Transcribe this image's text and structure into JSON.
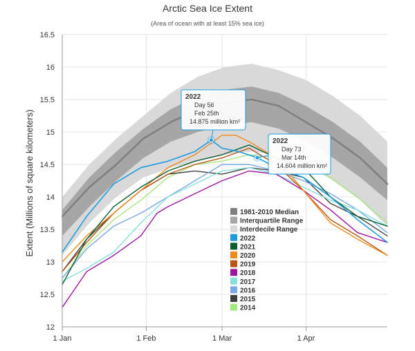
{
  "chart_data": {
    "type": "line",
    "title": "Arctic Sea Ice Extent",
    "subtitle": "(Area of ocean with at least 15% sea ice)",
    "ylabel": "Extent (Millions of square kilometers)",
    "xlabel": "",
    "xlim": [
      1,
      121
    ],
    "ylim": [
      12,
      16.5
    ],
    "grid": true,
    "legend_position": "inside-lower-right",
    "x_ticks": [
      {
        "day": 1,
        "label": "1 Jan"
      },
      {
        "day": 32,
        "label": "1 Feb"
      },
      {
        "day": 60,
        "label": "1 Mar"
      },
      {
        "day": 91,
        "label": "1 Apr"
      }
    ],
    "y_ticks": [
      12,
      12.5,
      13,
      13.5,
      14,
      14.5,
      15,
      15.5,
      16,
      16.5
    ],
    "bands": [
      {
        "name": "Interdecile Range",
        "color": "#d9d9d9",
        "x": [
          1,
          11,
          21,
          31,
          41,
          51,
          61,
          71,
          81,
          91,
          101,
          111,
          121
        ],
        "upper": [
          14.0,
          14.5,
          14.9,
          15.25,
          15.6,
          15.85,
          16.0,
          16.05,
          15.95,
          15.8,
          15.55,
          15.25,
          14.85
        ],
        "lower": [
          13.1,
          13.6,
          14.0,
          14.3,
          14.45,
          14.55,
          14.65,
          14.7,
          14.65,
          14.5,
          14.25,
          13.95,
          13.55
        ]
      },
      {
        "name": "Interquartile Range",
        "color": "#a6a6a6",
        "x": [
          1,
          11,
          21,
          31,
          41,
          51,
          61,
          71,
          81,
          91,
          101,
          111,
          121
        ],
        "upper": [
          13.8,
          14.3,
          14.7,
          15.05,
          15.35,
          15.55,
          15.65,
          15.7,
          15.6,
          15.4,
          15.15,
          14.85,
          14.45
        ],
        "lower": [
          13.4,
          13.85,
          14.25,
          14.6,
          14.85,
          15.0,
          15.1,
          15.15,
          15.05,
          14.85,
          14.6,
          14.3,
          13.95
        ]
      }
    ],
    "series": [
      {
        "name": "1981-2010 Median",
        "color": "#7f7f7f",
        "width": 2.5,
        "x": [
          1,
          11,
          21,
          31,
          41,
          51,
          61,
          71,
          81,
          91,
          101,
          111,
          121
        ],
        "values": [
          13.7,
          14.15,
          14.5,
          14.9,
          15.15,
          15.35,
          15.45,
          15.5,
          15.4,
          15.15,
          14.9,
          14.6,
          14.2
        ]
      },
      {
        "name": "Interquartile Range",
        "color": "#a6a6a6",
        "legend_only": true
      },
      {
        "name": "Interdecile Range",
        "color": "#d9d9d9",
        "legend_only": true
      },
      {
        "name": "2022",
        "color": "#1f9be0",
        "width": 1.6,
        "x": [
          1,
          10,
          20,
          30,
          40,
          50,
          56,
          60,
          66,
          73,
          80,
          90,
          100,
          110,
          121
        ],
        "values": [
          13.15,
          13.7,
          14.2,
          14.45,
          14.55,
          14.7,
          14.875,
          14.75,
          14.7,
          14.604,
          14.45,
          14.3,
          14.0,
          13.65,
          13.3
        ]
      },
      {
        "name": "2021",
        "color": "#0b5e2c",
        "width": 1.4,
        "x": [
          1,
          10,
          20,
          30,
          40,
          50,
          60,
          70,
          75,
          80,
          90,
          100,
          110,
          121
        ],
        "values": [
          12.65,
          13.35,
          13.85,
          14.15,
          14.4,
          14.55,
          14.65,
          14.8,
          14.7,
          14.6,
          14.45,
          14.0,
          13.7,
          13.55
        ]
      },
      {
        "name": "2020",
        "color": "#f08a1c",
        "width": 1.4,
        "x": [
          1,
          10,
          20,
          30,
          40,
          50,
          60,
          65,
          70,
          80,
          90,
          100,
          110,
          121
        ],
        "values": [
          13.0,
          13.4,
          13.75,
          14.1,
          14.45,
          14.65,
          14.95,
          14.95,
          14.85,
          14.6,
          14.1,
          13.6,
          13.35,
          13.1
        ]
      },
      {
        "name": "2019",
        "color": "#b65514",
        "width": 1.4,
        "x": [
          1,
          10,
          20,
          30,
          40,
          50,
          60,
          70,
          80,
          90,
          100,
          110,
          121
        ],
        "values": [
          12.85,
          13.3,
          13.75,
          14.1,
          14.35,
          14.5,
          14.6,
          14.75,
          14.5,
          14.1,
          13.65,
          13.4,
          13.1
        ]
      },
      {
        "name": "2018",
        "color": "#a014a4",
        "width": 1.4,
        "x": [
          1,
          10,
          20,
          30,
          36,
          40,
          50,
          60,
          70,
          80,
          90,
          100,
          110,
          121
        ],
        "values": [
          12.3,
          12.85,
          13.1,
          13.4,
          13.75,
          13.85,
          14.05,
          14.25,
          14.4,
          14.35,
          14.1,
          13.8,
          13.45,
          13.3
        ]
      },
      {
        "name": "2017",
        "color": "#86e0de",
        "width": 1.4,
        "x": [
          1,
          10,
          20,
          30,
          40,
          50,
          60,
          70,
          80,
          90,
          100,
          110,
          121
        ],
        "values": [
          12.7,
          12.9,
          13.15,
          13.6,
          14.0,
          14.2,
          14.4,
          14.45,
          14.35,
          14.15,
          13.95,
          13.8,
          13.55
        ]
      },
      {
        "name": "2016",
        "color": "#78a8e6",
        "width": 1.4,
        "x": [
          1,
          10,
          20,
          30,
          40,
          50,
          60,
          70,
          80,
          90,
          100,
          110,
          121
        ],
        "values": [
          12.75,
          13.2,
          13.55,
          13.75,
          14.0,
          14.25,
          14.5,
          14.5,
          14.4,
          14.25,
          14.05,
          13.8,
          13.45
        ]
      },
      {
        "name": "2015",
        "color": "#404040",
        "width": 1.4,
        "x": [
          1,
          10,
          20,
          30,
          40,
          50,
          60,
          70,
          80,
          90,
          100,
          110,
          121
        ],
        "values": [
          12.85,
          13.35,
          13.75,
          14.1,
          14.35,
          14.4,
          14.35,
          14.45,
          14.4,
          14.3,
          13.9,
          13.7,
          13.4
        ]
      },
      {
        "name": "2014",
        "color": "#a6e880",
        "width": 1.4,
        "x": [
          1,
          10,
          20,
          30,
          40,
          50,
          60,
          70,
          80,
          90,
          100,
          110,
          121
        ],
        "values": [
          12.75,
          13.25,
          13.65,
          13.95,
          14.3,
          14.5,
          14.55,
          14.65,
          14.6,
          14.55,
          14.3,
          14.0,
          13.6
        ]
      }
    ],
    "tooltips": [
      {
        "series": "2022",
        "day": 56,
        "value": 14.875,
        "title": "2022",
        "line1": "Day 56",
        "line2": "Feb 25th",
        "line3": "14.875 million km²"
      },
      {
        "series": "2022",
        "day": 73,
        "value": 14.604,
        "title": "2022",
        "line1": "Day 73",
        "line2": "Mar 14th",
        "line3": "14.604 million km²"
      }
    ]
  }
}
